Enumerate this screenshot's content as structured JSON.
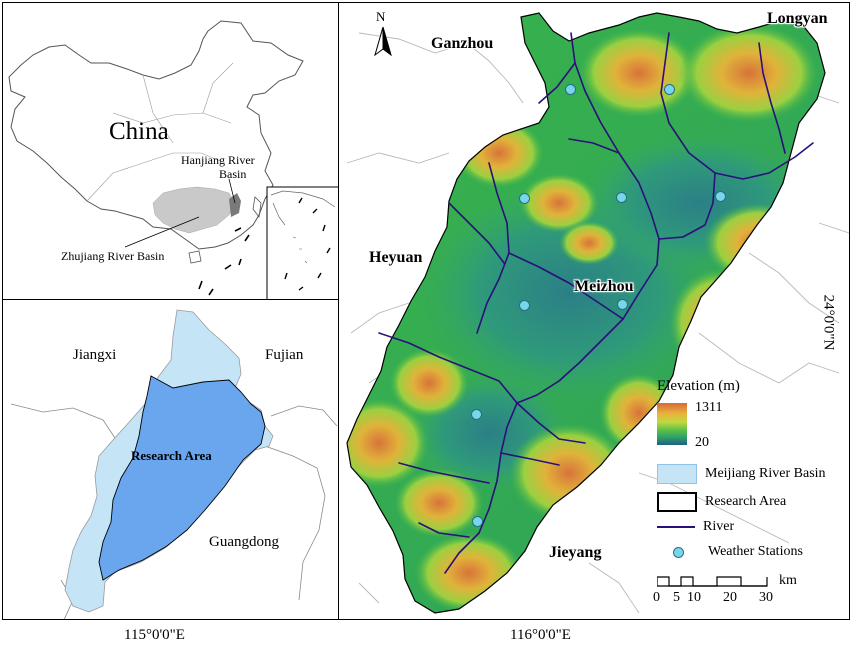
{
  "china_inset": {
    "country_label": "China",
    "hanjiang_label_line1": "Hanjiang River",
    "hanjiang_label_line2": "Basin",
    "zhujiang_label": "Zhujiang River Basin"
  },
  "region_inset": {
    "jiangxi": "Jiangxi",
    "fujian": "Fujian",
    "guangdong": "Guangdong",
    "research_area": "Research Area"
  },
  "main_map": {
    "north_arrow": "N",
    "places": {
      "ganzhou": "Ganzhou",
      "longyan": "Longyan",
      "heyuan": "Heyuan",
      "meizhou": "Meizhou",
      "jieyang": "Jieyang"
    },
    "weather_stations_count": 9
  },
  "legend": {
    "title": "Elevation (m)",
    "elev_max": "1311",
    "elev_min": "20",
    "meijiang_basin": "Meijiang River Basin",
    "research_area": "Research Area",
    "river": "River",
    "weather_stations": "Weather Stations",
    "scale_ticks": [
      "0",
      "5",
      "10",
      "20",
      "30"
    ],
    "scale_unit": "km"
  },
  "coordinates": {
    "lon_left": "115°0'0\"E",
    "lon_right": "116°0'0\"E",
    "lat_right": "24°0'0\"N"
  },
  "colors": {
    "basin_light": "#c5e4f6",
    "research_blue": "#6aa6ee",
    "river": "#2b0f7a",
    "station": "#76d7ec",
    "zhujiang_grey": "#c9c9c9"
  }
}
